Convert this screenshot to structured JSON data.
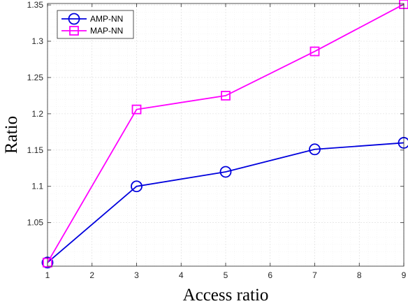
{
  "chart_data": {
    "type": "line",
    "xlabel": "Access ratio",
    "ylabel": "Ratio",
    "xlim": [
      1,
      9
    ],
    "ylim": [
      0.99,
      1.352
    ],
    "x_ticks": [
      1,
      2,
      3,
      4,
      5,
      6,
      7,
      8,
      9
    ],
    "y_ticks": [
      {
        "value": 1.05,
        "label": "1.05"
      },
      {
        "value": 1.1,
        "label": "1.1"
      },
      {
        "value": 1.15,
        "label": "1.15"
      },
      {
        "value": 1.2,
        "label": "1.2"
      },
      {
        "value": 1.25,
        "label": "1.25"
      },
      {
        "value": 1.3,
        "label": "1.3"
      },
      {
        "value": 1.35,
        "label": "1.35"
      }
    ],
    "grid": true,
    "minor_grid": true,
    "legend_position": "top-left",
    "x": [
      1,
      3,
      5,
      7,
      9
    ],
    "series": [
      {
        "name": "AMP-NN",
        "values": [
          0.995,
          1.1,
          1.12,
          1.151,
          1.16
        ],
        "color": "#0000dd",
        "marker": "circle"
      },
      {
        "name": "MAP-NN",
        "values": [
          0.995,
          1.206,
          1.225,
          1.286,
          1.351
        ],
        "color": "#ff00ff",
        "marker": "square"
      }
    ]
  }
}
